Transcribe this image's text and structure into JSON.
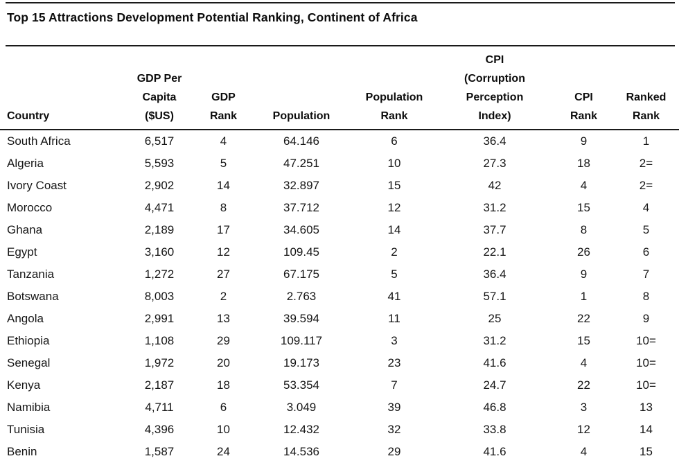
{
  "title": "Top 15 Attractions Development Potential Ranking, Continent of Africa",
  "colors": {
    "text": "#111111",
    "rule": "#1a1a1a",
    "background": "#ffffff"
  },
  "chart_data": {
    "type": "table",
    "title": "Top 15 Attractions Development Potential Ranking, Continent of Africa",
    "columns": [
      {
        "key": "country",
        "label": "Country",
        "align": "left"
      },
      {
        "key": "gdp-per-capita",
        "label": "GDP Per\nCapita\n($US)",
        "align": "center"
      },
      {
        "key": "gdp-rank",
        "label": "GDP\nRank",
        "align": "center"
      },
      {
        "key": "population",
        "label": "Population",
        "align": "center"
      },
      {
        "key": "population-rank",
        "label": "Population\nRank",
        "align": "center"
      },
      {
        "key": "cpi",
        "label": "CPI\n(Corruption\nPerception\nIndex)",
        "align": "center"
      },
      {
        "key": "cpi-rank",
        "label": "CPI\nRank",
        "align": "center"
      },
      {
        "key": "ranked-rank",
        "label": "Ranked\nRank",
        "align": "center"
      }
    ],
    "rows": [
      [
        "South Africa",
        "6,517",
        "4",
        "64.146",
        "6",
        "36.4",
        "9",
        "1"
      ],
      [
        "Algeria",
        "5,593",
        "5",
        "47.251",
        "10",
        "27.3",
        "18",
        "2="
      ],
      [
        "Ivory Coast",
        "2,902",
        "14",
        "32.897",
        "15",
        "42",
        "4",
        "2="
      ],
      [
        "Morocco",
        "4,471",
        "8",
        "37.712",
        "12",
        "31.2",
        "15",
        "4"
      ],
      [
        "Ghana",
        "2,189",
        "17",
        "34.605",
        "14",
        "37.7",
        "8",
        "5"
      ],
      [
        "Egypt",
        "3,160",
        "12",
        "109.45",
        "2",
        "22.1",
        "26",
        "6"
      ],
      [
        "Tanzania",
        "1,272",
        "27",
        "67.175",
        "5",
        "36.4",
        "9",
        "7"
      ],
      [
        "Botswana",
        "8,003",
        "2",
        "2.763",
        "41",
        "57.1",
        "1",
        "8"
      ],
      [
        "Angola",
        "2,991",
        "13",
        "39.594",
        "11",
        "25",
        "22",
        "9"
      ],
      [
        "Ethiopia",
        "1,108",
        "29",
        "109.117",
        "3",
        "31.2",
        "15",
        "10="
      ],
      [
        "Senegal",
        "1,972",
        "20",
        "19.173",
        "23",
        "41.6",
        "4",
        "10="
      ],
      [
        "Kenya",
        "2,187",
        "18",
        "53.354",
        "7",
        "24.7",
        "22",
        "10="
      ],
      [
        "Namibia",
        "4,711",
        "6",
        "3.049",
        "39",
        "46.8",
        "3",
        "13"
      ],
      [
        "Tunisia",
        "4,396",
        "10",
        "12.432",
        "32",
        "33.8",
        "12",
        "14"
      ],
      [
        "Benin",
        "1,587",
        "24",
        "14.536",
        "29",
        "41.6",
        "4",
        "15"
      ]
    ]
  }
}
